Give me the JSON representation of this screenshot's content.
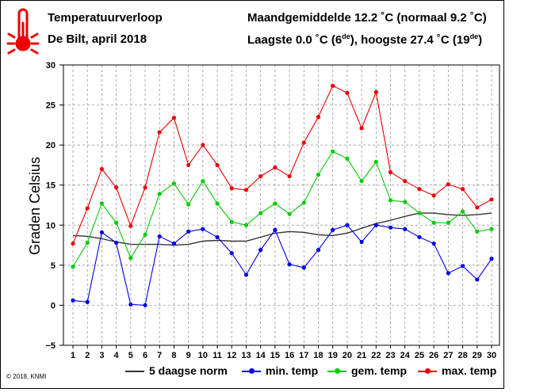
{
  "header": {
    "title": "Temperatuurverloop",
    "subtitle": "De Bilt, april 2018",
    "avg_line": "Maandgemiddelde 12.2 ˚C (normaal 9.2 ˚C)",
    "minmax_prefix": "Laagste 0.0 ˚C (6",
    "minmax_sup1": "de",
    "minmax_mid": "), hoogste 27.4 ˚C (19",
    "minmax_sup2": "de",
    "minmax_suffix": ")"
  },
  "credit": "© 2018, KNMI",
  "icon": "thermometer-icon",
  "colors": {
    "norm": "#333333",
    "min": "#0000ee",
    "gem": "#00cc00",
    "max": "#ee0000",
    "icon": "#ee0000"
  },
  "chart_data": {
    "type": "line",
    "ylabel": "Graden Celsius",
    "ylim": [
      -5,
      30
    ],
    "yticks": [
      -5,
      0,
      5,
      10,
      15,
      20,
      25,
      30
    ],
    "x": [
      1,
      2,
      3,
      4,
      5,
      6,
      7,
      8,
      9,
      10,
      11,
      12,
      13,
      14,
      15,
      16,
      17,
      18,
      19,
      20,
      21,
      22,
      23,
      24,
      25,
      26,
      27,
      28,
      29,
      30
    ],
    "series": [
      {
        "key": "norm",
        "name": "5 daagse norm",
        "markers": false,
        "values": [
          8.7,
          8.6,
          8.3,
          7.9,
          7.6,
          7.6,
          7.6,
          7.5,
          7.6,
          8.0,
          8.1,
          8.0,
          8.0,
          8.5,
          9.0,
          9.2,
          9.1,
          8.8,
          8.7,
          9.0,
          9.6,
          10.2,
          10.6,
          11.1,
          11.5,
          11.5,
          11.3,
          11.2,
          11.3,
          11.5
        ]
      },
      {
        "key": "min",
        "name": "min. temp",
        "markers": true,
        "values": [
          0.6,
          0.4,
          9.1,
          7.8,
          0.1,
          0.0,
          8.6,
          7.7,
          9.2,
          9.5,
          8.5,
          6.5,
          3.8,
          6.9,
          9.4,
          5.1,
          4.7,
          6.9,
          9.4,
          10.0,
          7.9,
          10.0,
          9.7,
          9.5,
          8.5,
          7.7,
          4.0,
          4.9,
          3.2,
          5.8
        ]
      },
      {
        "key": "gem",
        "name": "gem. temp",
        "markers": true,
        "values": [
          4.8,
          7.8,
          12.7,
          10.3,
          5.9,
          8.8,
          13.9,
          15.2,
          12.6,
          15.5,
          12.7,
          10.4,
          10.0,
          11.5,
          12.7,
          11.4,
          12.8,
          16.3,
          19.2,
          18.3,
          15.5,
          17.9,
          13.1,
          12.9,
          11.5,
          10.3,
          10.3,
          11.7,
          9.2,
          9.5
        ]
      },
      {
        "key": "max",
        "name": "max. temp",
        "markers": true,
        "values": [
          7.7,
          12.1,
          17.0,
          14.7,
          9.9,
          14.7,
          21.6,
          23.4,
          17.5,
          20.0,
          17.5,
          14.6,
          14.4,
          16.1,
          17.2,
          16.1,
          20.3,
          23.5,
          27.4,
          26.5,
          22.1,
          26.6,
          16.6,
          15.5,
          14.5,
          13.7,
          15.1,
          14.5,
          12.2,
          13.2
        ]
      }
    ],
    "grid": true
  }
}
